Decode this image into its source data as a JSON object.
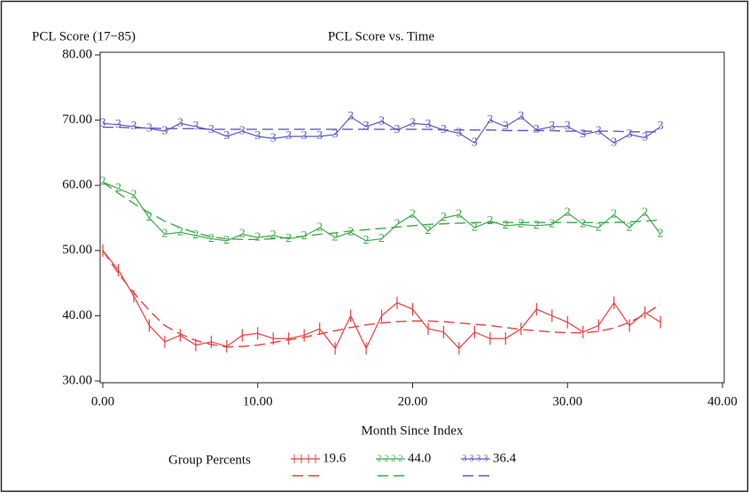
{
  "chart_data": {
    "type": "line",
    "title": "PCL Score vs. Time",
    "y_label": "PCL Score (17−85)",
    "x_label": "Month Since Index",
    "legend_title": "Group Percents",
    "x": [
      0,
      1,
      2,
      3,
      4,
      5,
      6,
      7,
      8,
      9,
      10,
      11,
      12,
      13,
      14,
      15,
      16,
      17,
      18,
      19,
      20,
      21,
      22,
      23,
      24,
      25,
      26,
      27,
      28,
      29,
      30,
      31,
      32,
      33,
      34,
      35,
      36
    ],
    "xlim": [
      0,
      40
    ],
    "ylim": [
      30,
      80
    ],
    "xticks": [
      {
        "value": 0,
        "label": "0.00"
      },
      {
        "value": 10,
        "label": "10.00"
      },
      {
        "value": 20,
        "label": "20.00"
      },
      {
        "value": 30,
        "label": "30.00"
      },
      {
        "value": 40,
        "label": "40.00"
      }
    ],
    "yticks": [
      {
        "value": 30,
        "label": "30.00"
      },
      {
        "value": 40,
        "label": "40.00"
      },
      {
        "value": 50,
        "label": "50.00"
      },
      {
        "value": 60,
        "label": "60.00"
      },
      {
        "value": 70,
        "label": "70.00"
      },
      {
        "value": 80,
        "label": "80.00"
      }
    ],
    "series": [
      {
        "name": "19.6",
        "color": "#e8413f",
        "marker": "tick",
        "values": [
          50,
          47,
          43,
          38.5,
          36,
          37,
          35.5,
          36,
          35.3,
          37,
          37.3,
          36.5,
          36.5,
          37,
          38,
          35,
          40,
          35,
          40,
          42,
          41,
          38,
          37.5,
          35,
          37.5,
          36.5,
          36.5,
          38,
          41,
          40,
          39,
          37.5,
          38.5,
          42,
          38.5,
          40.5,
          39
        ],
        "fitted": [
          50,
          46.5,
          43.5,
          40.8,
          38.5,
          37.2,
          36.2,
          35.6,
          35.2,
          35.3,
          35.5,
          35.9,
          36.3,
          36.7,
          37.2,
          37.7,
          38.2,
          38.6,
          38.9,
          39.1,
          39.2,
          39.2,
          39.1,
          38.9,
          38.7,
          38.5,
          38.2,
          37.9,
          37.7,
          37.5,
          37.4,
          37.4,
          37.6,
          38.1,
          39,
          40.2,
          41.8
        ]
      },
      {
        "name": "44.0",
        "color": "#3daa4a",
        "marker": "2",
        "values": [
          60.5,
          59.5,
          58.5,
          55,
          52.5,
          52.8,
          52.3,
          51.8,
          51.5,
          52.5,
          52,
          52.3,
          51.8,
          52.2,
          53.5,
          52,
          52.8,
          51.5,
          51.8,
          54,
          55.5,
          53,
          55,
          55.5,
          53.5,
          54.5,
          53.8,
          54,
          53.8,
          54,
          55.8,
          54,
          53.5,
          55.5,
          53.5,
          55.8,
          52.5
        ],
        "fitted": [
          60.5,
          58.8,
          57.2,
          55.8,
          54.5,
          53.5,
          52.7,
          52.1,
          51.8,
          51.7,
          51.7,
          51.8,
          52,
          52.2,
          52.5,
          52.7,
          53,
          53.2,
          53.4,
          53.6,
          53.8,
          54,
          54.1,
          54.2,
          54.3,
          54.3,
          54.3,
          54.3,
          54.3,
          54.3,
          54.3,
          54.3,
          54.3,
          54.3,
          54.4,
          54.5,
          54.7
        ]
      },
      {
        "name": "36.4",
        "color": "#5b5bc4",
        "marker": "3",
        "values": [
          69.5,
          69.3,
          69,
          68.7,
          68.3,
          69.5,
          69,
          68.5,
          67.5,
          68.3,
          67.5,
          67.2,
          67.5,
          67.5,
          67.5,
          67.8,
          70.5,
          69,
          69.8,
          68.5,
          69.5,
          69.3,
          68.5,
          68,
          66.5,
          70,
          69,
          70.5,
          68.5,
          69,
          69,
          67.8,
          68.3,
          66.5,
          67.8,
          67.3,
          69
        ],
        "fitted": [
          68.9,
          68.9,
          68.8,
          68.8,
          68.7,
          68.7,
          68.7,
          68.6,
          68.6,
          68.6,
          68.6,
          68.6,
          68.6,
          68.6,
          68.6,
          68.6,
          68.6,
          68.6,
          68.6,
          68.6,
          68.6,
          68.6,
          68.5,
          68.5,
          68.5,
          68.5,
          68.4,
          68.4,
          68.4,
          68.4,
          68.3,
          68.3,
          68.3,
          68.3,
          68.2,
          68.2,
          68.2
        ]
      }
    ]
  }
}
